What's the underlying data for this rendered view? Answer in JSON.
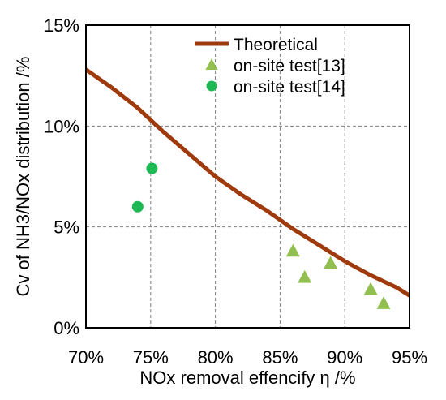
{
  "chart_data": {
    "type": "scatter",
    "xlabel": "NOx removal effencify η /%",
    "ylabel": "Cv of NH3/NOx distribution /%",
    "xlim": [
      70,
      95
    ],
    "ylim": [
      0,
      15
    ],
    "x_ticks": [
      70,
      75,
      80,
      85,
      90,
      95
    ],
    "y_ticks": [
      0,
      5,
      10,
      15
    ],
    "x_tick_labels": [
      "70%",
      "75%",
      "80%",
      "85%",
      "90%",
      "95%"
    ],
    "y_tick_labels": [
      "0%",
      "5%",
      "10%",
      "15%"
    ],
    "grid": true,
    "legend_position": "top-right",
    "series": [
      {
        "name": "Theoretical",
        "kind": "line",
        "color": "#9e3a0c",
        "x": [
          70,
          72,
          74,
          76,
          78,
          80,
          82,
          84,
          86,
          88,
          90,
          92,
          94,
          95
        ],
        "y": [
          12.8,
          11.9,
          10.9,
          9.7,
          8.6,
          7.5,
          6.6,
          5.8,
          4.9,
          4.1,
          3.3,
          2.6,
          2.0,
          1.6
        ]
      },
      {
        "name": "on-site test[13]",
        "kind": "scatter",
        "marker": "triangle",
        "color": "#92c050",
        "x": [
          86.0,
          86.9,
          88.9,
          92.0,
          93.0
        ],
        "y": [
          3.8,
          2.5,
          3.2,
          1.9,
          1.2
        ]
      },
      {
        "name": "on-site test[14]",
        "kind": "scatter",
        "marker": "circle",
        "color": "#1db954",
        "x": [
          74.0,
          75.1
        ],
        "y": [
          6.0,
          7.9
        ]
      }
    ]
  }
}
